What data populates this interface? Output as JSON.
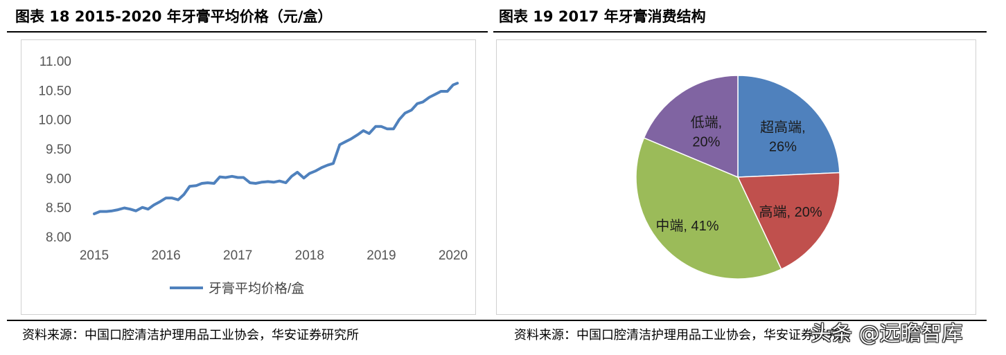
{
  "left_panel": {
    "title": "图表 18 2015-2020 年牙膏平均价格（元/盒）",
    "source": "资料来源：中国口腔清洁护理用品工业协会，华安证券研究所"
  },
  "right_panel": {
    "title": "图表 19 2017 年牙膏消费结构",
    "source": "资料来源：中国口腔清洁护理用品工业协会，华安证券研究所"
  },
  "watermark": "头条 @远瞻智库",
  "colors": {
    "line": "#4f81bd",
    "pie_high": "#4f81bd",
    "pie_mid_high": "#c0504d",
    "pie_mid": "#9bbb59",
    "pie_low": "#8064a2"
  },
  "chart_data": [
    {
      "type": "line",
      "title": "",
      "xlabel": "",
      "ylabel": "",
      "ylim": [
        8.0,
        11.0
      ],
      "yticks": [
        "8.00",
        "8.50",
        "9.00",
        "9.50",
        "10.00",
        "10.50",
        "11.00"
      ],
      "xticks": [
        "2015",
        "2016",
        "2017",
        "2018",
        "2019",
        "2020"
      ],
      "xlim": [
        2015,
        2020
      ],
      "grid": false,
      "legend": "bottom",
      "series": [
        {
          "name": "牙膏平均价格/盒",
          "x": [
            2015.0,
            2015.08,
            2015.17,
            2015.25,
            2015.33,
            2015.42,
            2015.5,
            2015.58,
            2015.67,
            2015.75,
            2015.83,
            2015.92,
            2016.0,
            2016.08,
            2016.17,
            2016.25,
            2016.33,
            2016.42,
            2016.5,
            2016.58,
            2016.67,
            2016.75,
            2016.83,
            2016.92,
            2017.0,
            2017.08,
            2017.17,
            2017.25,
            2017.33,
            2017.42,
            2017.5,
            2017.58,
            2017.67,
            2017.75,
            2017.83,
            2017.92,
            2018.0,
            2018.08,
            2018.17,
            2018.25,
            2018.33,
            2018.42,
            2018.5,
            2018.58,
            2018.67,
            2018.75,
            2018.83,
            2018.92,
            2019.0,
            2019.08,
            2019.17,
            2019.25,
            2019.33,
            2019.42,
            2019.5,
            2019.58,
            2019.67,
            2019.75,
            2019.83,
            2019.92,
            2020.0,
            2020.06
          ],
          "values": [
            8.39,
            8.43,
            8.43,
            8.44,
            8.46,
            8.49,
            8.47,
            8.44,
            8.5,
            8.47,
            8.54,
            8.6,
            8.66,
            8.66,
            8.63,
            8.72,
            8.86,
            8.87,
            8.91,
            8.92,
            8.91,
            9.02,
            9.01,
            9.03,
            9.01,
            9.01,
            8.92,
            8.91,
            8.93,
            8.94,
            8.93,
            8.95,
            8.92,
            9.03,
            9.1,
            9.0,
            9.08,
            9.12,
            9.18,
            9.22,
            9.25,
            9.57,
            9.62,
            9.67,
            9.74,
            9.81,
            9.76,
            9.88,
            9.88,
            9.84,
            9.84,
            10.0,
            10.11,
            10.16,
            10.27,
            10.3,
            10.38,
            10.43,
            10.48,
            10.48,
            10.59,
            10.62
          ]
        }
      ]
    },
    {
      "type": "pie",
      "title": "",
      "legend": "none",
      "slices": [
        {
          "label": "超高端",
          "value": 26,
          "text": "26%"
        },
        {
          "label": "高端",
          "value": 20,
          "text": "20%"
        },
        {
          "label": "中端",
          "value": 41,
          "text": "41%"
        },
        {
          "label": "低端",
          "value": 20,
          "text": "20%"
        }
      ]
    }
  ]
}
